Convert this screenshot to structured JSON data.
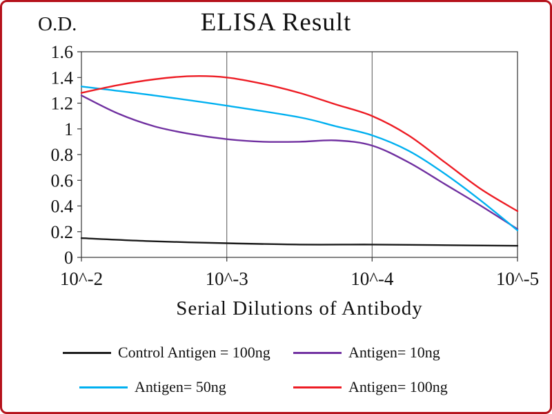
{
  "frame": {
    "border_color": "#b5121b",
    "background": "#ffffff"
  },
  "chart_data": {
    "type": "line",
    "title": "ELISA Result",
    "y_axis_label": "O.D.",
    "x_axis_label": "Serial Dilutions of Antibody",
    "x_tick_labels": [
      "10^-2",
      "10^-3",
      "10^-4",
      "10^-5"
    ],
    "x_ticks": [
      0,
      1,
      2,
      3
    ],
    "y_tick_labels": [
      "0",
      "0.2",
      "0.4",
      "0.6",
      "0.8",
      "1",
      "1.2",
      "1.4",
      "1.6"
    ],
    "y_ticks": [
      0,
      0.2,
      0.4,
      0.6,
      0.8,
      1.0,
      1.2,
      1.4,
      1.6
    ],
    "xlim": [
      0,
      3
    ],
    "ylim": [
      0,
      1.6
    ],
    "grid": "vertical-only",
    "legend_position": "bottom",
    "series": [
      {
        "name": "Control Antigen = 100ng",
        "color": "#1a1a1a",
        "points": [
          [
            0,
            0.15
          ],
          [
            0.5,
            0.125
          ],
          [
            1,
            0.11
          ],
          [
            1.5,
            0.1
          ],
          [
            2,
            0.1
          ],
          [
            2.5,
            0.095
          ],
          [
            3,
            0.09
          ]
        ]
      },
      {
        "name": "Antigen= 10ng",
        "color": "#7030a0",
        "points": [
          [
            0,
            1.26
          ],
          [
            0.25,
            1.12
          ],
          [
            0.5,
            1.02
          ],
          [
            0.75,
            0.96
          ],
          [
            1,
            0.92
          ],
          [
            1.25,
            0.9
          ],
          [
            1.5,
            0.9
          ],
          [
            1.75,
            0.91
          ],
          [
            2,
            0.87
          ],
          [
            2.25,
            0.74
          ],
          [
            2.5,
            0.57
          ],
          [
            2.75,
            0.4
          ],
          [
            3,
            0.22
          ]
        ]
      },
      {
        "name": "Antigen= 50ng",
        "color": "#00b0f0",
        "points": [
          [
            0,
            1.33
          ],
          [
            0.5,
            1.26
          ],
          [
            1,
            1.18
          ],
          [
            1.5,
            1.09
          ],
          [
            1.75,
            1.02
          ],
          [
            2,
            0.95
          ],
          [
            2.25,
            0.83
          ],
          [
            2.5,
            0.65
          ],
          [
            2.75,
            0.44
          ],
          [
            3,
            0.21
          ]
        ]
      },
      {
        "name": "Antigen= 100ng",
        "color": "#ed1c24",
        "points": [
          [
            0,
            1.28
          ],
          [
            0.25,
            1.34
          ],
          [
            0.5,
            1.385
          ],
          [
            0.75,
            1.41
          ],
          [
            1,
            1.4
          ],
          [
            1.25,
            1.35
          ],
          [
            1.5,
            1.28
          ],
          [
            1.75,
            1.19
          ],
          [
            2,
            1.1
          ],
          [
            2.25,
            0.95
          ],
          [
            2.5,
            0.74
          ],
          [
            2.75,
            0.53
          ],
          [
            3,
            0.36
          ]
        ]
      }
    ]
  }
}
